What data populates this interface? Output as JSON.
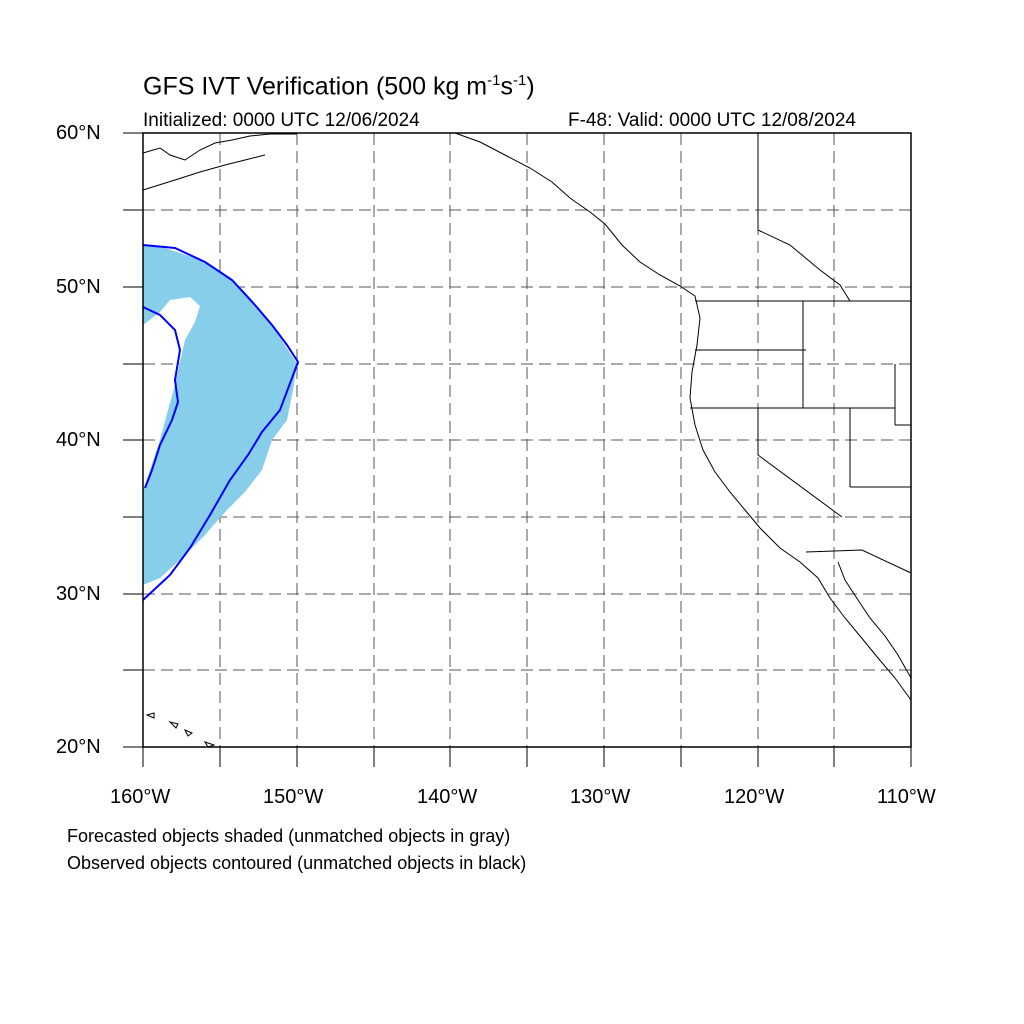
{
  "header": {
    "title_main": "GFS IVT Verification (500 kg m",
    "title_exp1": "-1",
    "title_mid": "s",
    "title_exp2": "-1",
    "title_end": ")",
    "initialized": "Initialized: 0000 UTC 12/06/2024",
    "valid": "F-48: Valid: 0000 UTC 12/08/2024"
  },
  "axes": {
    "lat_labels": [
      "60°N",
      "50°N",
      "40°N",
      "30°N",
      "20°N"
    ],
    "lon_labels": [
      "160°W",
      "150°W",
      "140°W",
      "130°W",
      "120°W",
      "110°W"
    ],
    "lat_range": [
      20,
      60
    ],
    "lon_range": [
      -160,
      -110
    ],
    "grid": "dashed every 5 degrees"
  },
  "legend": {
    "line1": "Forecasted objects shaded (unmatched objects in gray)",
    "line2": "Observed objects contoured (unmatched objects in black)"
  },
  "colors": {
    "forecast_fill": "#87ceeb",
    "observed_contour": "#0000ff",
    "coastline": "#000000",
    "grid": "#555555"
  }
}
